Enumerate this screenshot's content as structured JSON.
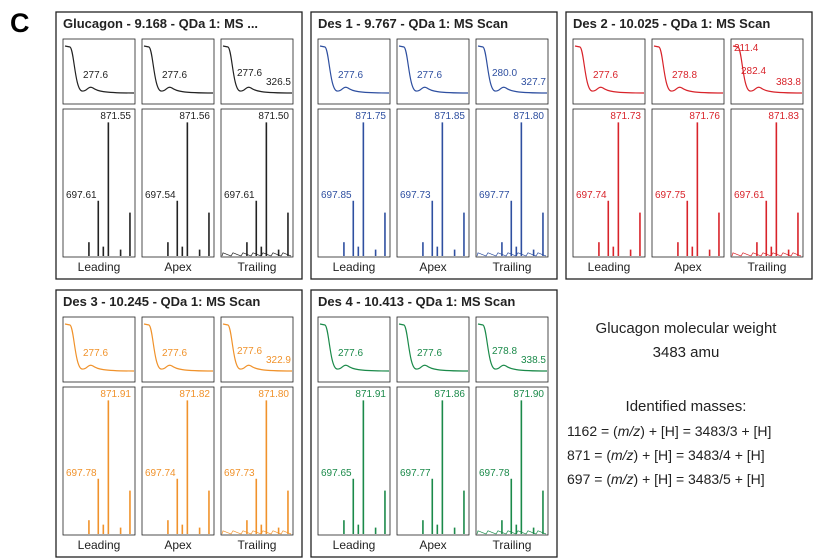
{
  "panel_label": "C",
  "panels": [
    {
      "title": "Glucagon - 9.168 - QDa 1: MS ...",
      "color": "#222222",
      "columns": [
        {
          "label": "Leading",
          "uv": [
            "277.6"
          ],
          "ms": [
            "871.55",
            "697.61"
          ]
        },
        {
          "label": "Apex",
          "uv": [
            "277.6"
          ],
          "ms": [
            "871.56",
            "697.54"
          ]
        },
        {
          "label": "Trailing",
          "uv": [
            "277.6",
            "326.5"
          ],
          "ms": [
            "871.50",
            "697.61"
          ]
        }
      ]
    },
    {
      "title": "Des 1 - 9.767 - QDa 1: MS Scan",
      "color": "#2e4fa0",
      "columns": [
        {
          "label": "Leading",
          "uv": [
            "277.6"
          ],
          "ms": [
            "871.75",
            "697.85"
          ]
        },
        {
          "label": "Apex",
          "uv": [
            "277.6"
          ],
          "ms": [
            "871.85",
            "697.73"
          ]
        },
        {
          "label": "Trailing",
          "uv": [
            "280.0",
            "327.7"
          ],
          "ms": [
            "871.80",
            "697.77"
          ]
        }
      ]
    },
    {
      "title": "Des 2 - 10.025 - QDa 1: MS Scan",
      "color": "#d8232a",
      "columns": [
        {
          "label": "Leading",
          "uv": [
            "277.6"
          ],
          "ms": [
            "871.73",
            "697.74"
          ]
        },
        {
          "label": "Apex",
          "uv": [
            "278.8"
          ],
          "ms": [
            "871.76",
            "697.75"
          ]
        },
        {
          "label": "Trailing",
          "uv": [
            "211.4",
            "282.4",
            "383.8"
          ],
          "ms": [
            "871.83",
            "697.61"
          ]
        }
      ]
    },
    {
      "title": "Des 3 - 10.245 - QDa 1: MS Scan",
      "color": "#f0922b",
      "columns": [
        {
          "label": "Leading",
          "uv": [
            "277.6"
          ],
          "ms": [
            "871.91",
            "697.78"
          ]
        },
        {
          "label": "Apex",
          "uv": [
            "277.6"
          ],
          "ms": [
            "871.82",
            "697.74"
          ]
        },
        {
          "label": "Trailing",
          "uv": [
            "277.6",
            "322.9"
          ],
          "ms": [
            "871.80",
            "697.73"
          ]
        }
      ]
    },
    {
      "title": "Des 4 - 10.413 - QDa 1: MS Scan",
      "color": "#1b8a4a",
      "columns": [
        {
          "label": "Leading",
          "uv": [
            "277.6"
          ],
          "ms": [
            "871.91",
            "697.65"
          ]
        },
        {
          "label": "Apex",
          "uv": [
            "277.6"
          ],
          "ms": [
            "871.86",
            "697.77"
          ]
        },
        {
          "label": "Trailing",
          "uv": [
            "278.8",
            "338.5"
          ],
          "ms": [
            "871.90",
            "697.78"
          ]
        }
      ]
    }
  ],
  "notes": {
    "weight_title": "Glucagon molecular weight",
    "weight": "3483 amu",
    "heading": "Identified masses:",
    "equations": [
      [
        "1162 = (",
        "m/z",
        ") + [H] = 3483/3 + [H]"
      ],
      [
        "871 = (",
        "m/z",
        ") + [H] = 3483/4 + [H]"
      ],
      [
        "697 = (",
        "m/z",
        ") + [H] = 3483/5 + [H]"
      ]
    ]
  }
}
